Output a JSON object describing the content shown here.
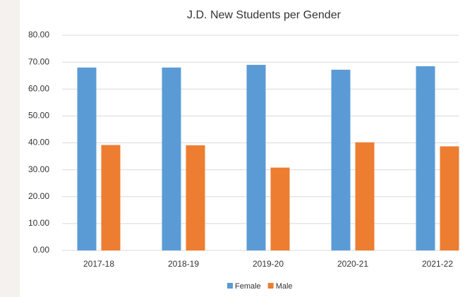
{
  "chart_data": {
    "type": "bar",
    "title": "J.D. New Students per Gender",
    "categories": [
      "2017-18",
      "2018-19",
      "2019-20",
      "2020-21",
      "2021-22"
    ],
    "series": [
      {
        "name": "Female",
        "color": "#5b9bd5",
        "values": [
          68.0,
          68.0,
          69.0,
          67.2,
          68.5
        ]
      },
      {
        "name": "Male",
        "color": "#ed7d31",
        "values": [
          39.2,
          39.1,
          30.8,
          40.2,
          38.7
        ]
      }
    ],
    "ylim": [
      0,
      80
    ],
    "yticks": [
      {
        "value": 0,
        "label": "0.00"
      },
      {
        "value": 10,
        "label": "10.00"
      },
      {
        "value": 20,
        "label": "20.00"
      },
      {
        "value": 30,
        "label": "30.00"
      },
      {
        "value": 40,
        "label": "40.00"
      },
      {
        "value": 50,
        "label": "50.00"
      },
      {
        "value": 60,
        "label": "60.00"
      },
      {
        "value": 70,
        "label": "70.00"
      },
      {
        "value": 80,
        "label": "80.00"
      }
    ],
    "grid": true,
    "legend": "bottom"
  }
}
